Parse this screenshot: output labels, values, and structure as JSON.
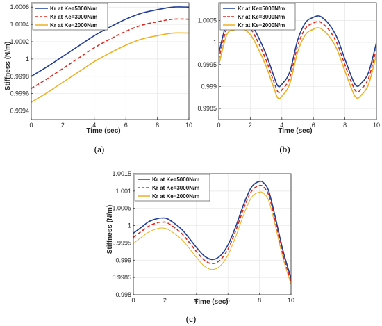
{
  "colors": {
    "series_5000": "#1f3d99",
    "series_3000": "#e0261b",
    "series_2000": "#edb120",
    "grid": "#e6e6e6",
    "axis": "#262626"
  },
  "chart_data": [
    {
      "panel": "a",
      "caption": "(a)",
      "type": "line",
      "xlabel": "Time (sec)",
      "ylabel": "Stiffness (N/m)",
      "xlim": [
        0,
        10
      ],
      "ylim": [
        0.9993,
        1.00065
      ],
      "xticks": [
        0,
        2,
        4,
        6,
        8,
        10
      ],
      "yticks": [
        0.9994,
        0.9996,
        0.9998,
        1,
        1.0002,
        1.0004,
        1.0006
      ],
      "ytick_labels": [
        "0.9994",
        "0.9996",
        "0.9998",
        "1",
        "1.0002",
        "1.0004",
        "1.0006"
      ],
      "grid": true,
      "legend": "top-left",
      "series": [
        {
          "name": "Kr at Ke=5000N/m",
          "style": "solid",
          "color_key": "series_5000",
          "x": [
            0,
            1,
            2,
            3,
            4,
            5,
            6,
            7,
            8,
            9,
            10
          ],
          "y": [
            0.9998,
            0.99991,
            1.00003,
            1.00015,
            1.00027,
            1.00037,
            1.00046,
            1.00053,
            1.00057,
            1.0006,
            1.0006
          ]
        },
        {
          "name": "Kr at Ke=3000N/m",
          "style": "dashed",
          "color_key": "series_3000",
          "x": [
            0,
            1,
            2,
            3,
            4,
            5,
            6,
            7,
            8,
            9,
            10
          ],
          "y": [
            0.99966,
            0.99977,
            0.99989,
            1.00001,
            1.00013,
            1.00023,
            1.00032,
            1.00039,
            1.00043,
            1.00046,
            1.00046
          ]
        },
        {
          "name": "Kr at Ke=2000N/m",
          "style": "solid",
          "color_key": "series_2000",
          "x": [
            0,
            1,
            2,
            3,
            4,
            5,
            6,
            7,
            8,
            9,
            10
          ],
          "y": [
            0.9995,
            0.99961,
            0.99973,
            0.99985,
            0.99997,
            1.00007,
            1.00016,
            1.00023,
            1.00027,
            1.0003,
            1.0003
          ]
        }
      ]
    },
    {
      "panel": "b",
      "caption": "(b)",
      "type": "line",
      "xlabel": "Time (sec)",
      "ylabel": "",
      "xlim": [
        0,
        10
      ],
      "ylim": [
        0.99825,
        1.0009
      ],
      "xticks": [
        0,
        2,
        4,
        6,
        8,
        10
      ],
      "yticks": [
        0.9985,
        0.999,
        0.9995,
        1,
        1.0005
      ],
      "ytick_labels": [
        "0.9985",
        "0.999",
        "0.9995",
        "1",
        "1.0005"
      ],
      "grid": true,
      "legend": "top-left",
      "series": [
        {
          "name": "Kr at Ke=5000N/m",
          "style": "solid",
          "color_key": "series_5000",
          "x": [
            0,
            0.5,
            1,
            1.25,
            1.5,
            2,
            2.5,
            3,
            3.5,
            3.75,
            4,
            4.5,
            5,
            5.5,
            6,
            6.25,
            6.5,
            7,
            7.5,
            8,
            8.5,
            8.75,
            9,
            9.5,
            10
          ],
          "y": [
            0.99975,
            1.00044,
            1.00056,
            1.0006,
            1.00059,
            1.00045,
            1.00013,
            0.99973,
            0.99923,
            0.99901,
            0.99905,
            0.99933,
            1.00005,
            1.00045,
            1.00057,
            1.0006,
            1.00058,
            1.00041,
            1.00011,
            0.99962,
            0.99915,
            0.99901,
            0.99906,
            0.99932,
            1.0
          ]
        },
        {
          "name": "Kr at Ke=3000N/m",
          "style": "dashed",
          "color_key": "series_3000",
          "x": [
            0,
            0.5,
            1,
            1.25,
            1.5,
            2,
            2.5,
            3,
            3.5,
            3.75,
            4,
            4.5,
            5,
            5.5,
            6,
            6.25,
            6.5,
            7,
            7.5,
            8,
            8.5,
            8.75,
            9,
            9.5,
            10
          ],
          "y": [
            0.99962,
            1.00031,
            1.00043,
            1.00047,
            1.00046,
            1.00032,
            1.0,
            0.9996,
            0.9991,
            0.99888,
            0.99892,
            0.9992,
            0.99992,
            1.00032,
            1.00044,
            1.00047,
            1.00045,
            1.00028,
            0.99998,
            0.99949,
            0.99902,
            0.99888,
            0.99893,
            0.99919,
            0.99987
          ]
        },
        {
          "name": "Kr at Ke=2000N/m",
          "style": "solid",
          "color_key": "series_2000",
          "x": [
            0,
            0.5,
            1,
            1.25,
            1.5,
            2,
            2.5,
            3,
            3.5,
            3.75,
            4,
            4.5,
            5,
            5.5,
            6,
            6.25,
            6.5,
            7,
            7.5,
            8,
            8.5,
            8.75,
            9,
            9.5,
            10
          ],
          "y": [
            0.99948,
            1.00017,
            1.00029,
            1.00033,
            1.00032,
            1.00018,
            0.99986,
            0.99946,
            0.99896,
            0.99874,
            0.99878,
            0.99906,
            0.99978,
            1.00018,
            1.0003,
            1.00033,
            1.00031,
            1.00014,
            0.99984,
            0.99935,
            0.99888,
            0.99874,
            0.99879,
            0.99905,
            0.99973
          ]
        }
      ]
    },
    {
      "panel": "c",
      "caption": "(c)",
      "type": "line",
      "xlabel": "Time (sec)",
      "ylabel": "Stiffness (N/m)",
      "xlim": [
        0,
        10
      ],
      "ylim": [
        0.998,
        1.0015
      ],
      "xticks": [
        0,
        2,
        4,
        6,
        8,
        10
      ],
      "yticks": [
        0.998,
        0.9985,
        0.999,
        0.9995,
        1,
        1.0005,
        1.001,
        1.0015
      ],
      "ytick_labels": [
        "0.998",
        "0.9985",
        "0.999",
        "0.9995",
        "1",
        "1.0005",
        "1.001",
        "1.0015"
      ],
      "grid": true,
      "legend": "top-left",
      "series": [
        {
          "name": "Kr at Ke=5000N/m",
          "style": "solid",
          "color_key": "series_5000",
          "x": [
            0,
            0.5,
            1,
            1.5,
            1.8,
            2.2,
            3,
            3.5,
            4,
            4.5,
            5,
            5.5,
            6,
            6.5,
            7,
            7.5,
            8,
            8.3,
            8.6,
            9,
            9.5,
            10
          ],
          "y": [
            0.99978,
            0.99995,
            1.00012,
            1.0002,
            1.00022,
            1.00019,
            0.99992,
            0.99966,
            0.99937,
            0.99912,
            0.99902,
            0.99912,
            0.99944,
            0.99998,
            1.00062,
            1.00112,
            1.00128,
            1.00122,
            1.00098,
            1.00025,
            0.99926,
            0.99848
          ]
        },
        {
          "name": "Kr at Ke=3000N/m",
          "style": "dashed",
          "color_key": "series_3000",
          "x": [
            0,
            0.5,
            1,
            1.5,
            1.8,
            2.2,
            3,
            3.5,
            4,
            4.5,
            5,
            5.5,
            6,
            6.5,
            7,
            7.5,
            8,
            8.3,
            8.6,
            9,
            9.5,
            10
          ],
          "y": [
            0.99966,
            0.99983,
            0.99999,
            1.00008,
            1.0001,
            1.00007,
            0.9998,
            0.99954,
            0.99925,
            0.999,
            0.9989,
            0.999,
            0.99932,
            0.99986,
            1.0005,
            1.001,
            1.00116,
            1.0011,
            1.00086,
            1.00013,
            0.99914,
            0.99838
          ]
        },
        {
          "name": "Kr at Ke=2000N/m",
          "style": "solid",
          "color_key": "series_2000",
          "x": [
            0,
            0.5,
            1,
            1.5,
            1.8,
            2.2,
            3,
            3.5,
            4,
            4.5,
            5,
            5.5,
            6,
            6.5,
            7,
            7.5,
            8,
            8.3,
            8.6,
            9,
            9.5,
            10
          ],
          "y": [
            0.99948,
            0.99966,
            0.99982,
            0.99991,
            0.99993,
            0.99989,
            0.99963,
            0.99937,
            0.99908,
            0.99883,
            0.99873,
            0.99883,
            0.99915,
            0.99969,
            1.00032,
            1.00082,
            1.00097,
            1.00092,
            1.0007,
            1.0,
            0.99904,
            0.9983
          ]
        }
      ]
    }
  ]
}
